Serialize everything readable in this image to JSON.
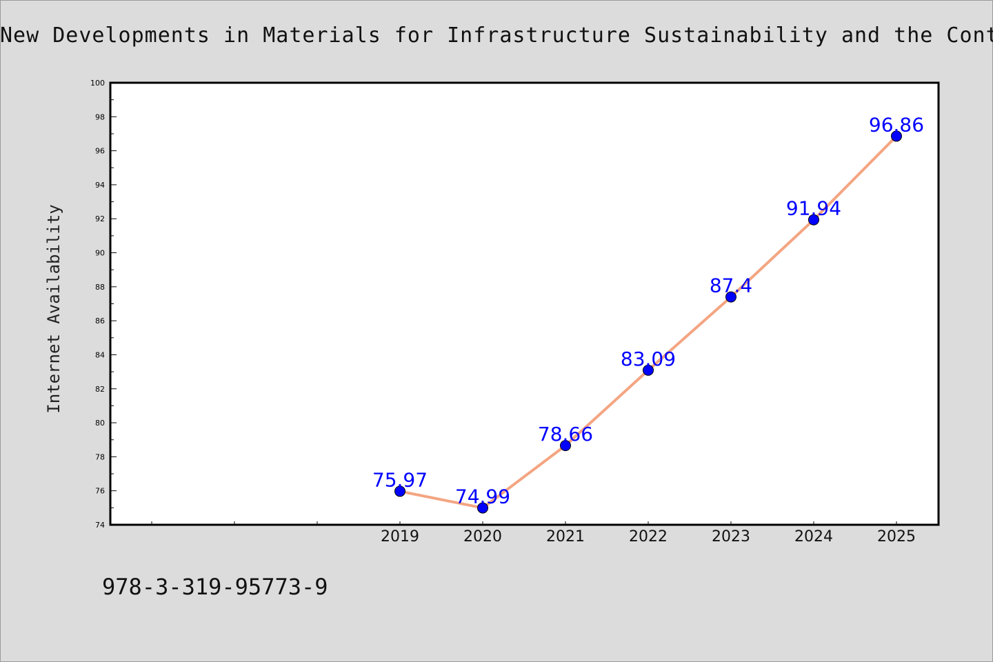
{
  "chart_data": {
    "type": "line",
    "title": "New Developments in Materials for Infrastructure Sustainability and the Contempo",
    "xlabel": "",
    "ylabel": "Internet Availability",
    "ylim": [
      74,
      100
    ],
    "yticks": [
      "74",
      "76",
      "78",
      "80",
      "82",
      "84",
      "86",
      "88",
      "90",
      "92",
      "94",
      "96",
      "98",
      "100"
    ],
    "categories": [
      "2019",
      "2020",
      "2021",
      "2022",
      "2023",
      "2024",
      "2025"
    ],
    "series": [
      {
        "values": [
          75.97,
          74.99,
          78.66,
          83.09,
          87.4,
          91.94,
          96.86
        ],
        "data_labels": [
          "75.97",
          "74.99",
          "78.66",
          "83.09",
          "87.4",
          "91.94",
          "96.86"
        ]
      }
    ],
    "grid": false,
    "line_color": "#f4a582",
    "marker_color": "#0000ff",
    "label_color": "#0000ff"
  },
  "footer": {
    "isbn": "978-3-319-95773-9"
  }
}
